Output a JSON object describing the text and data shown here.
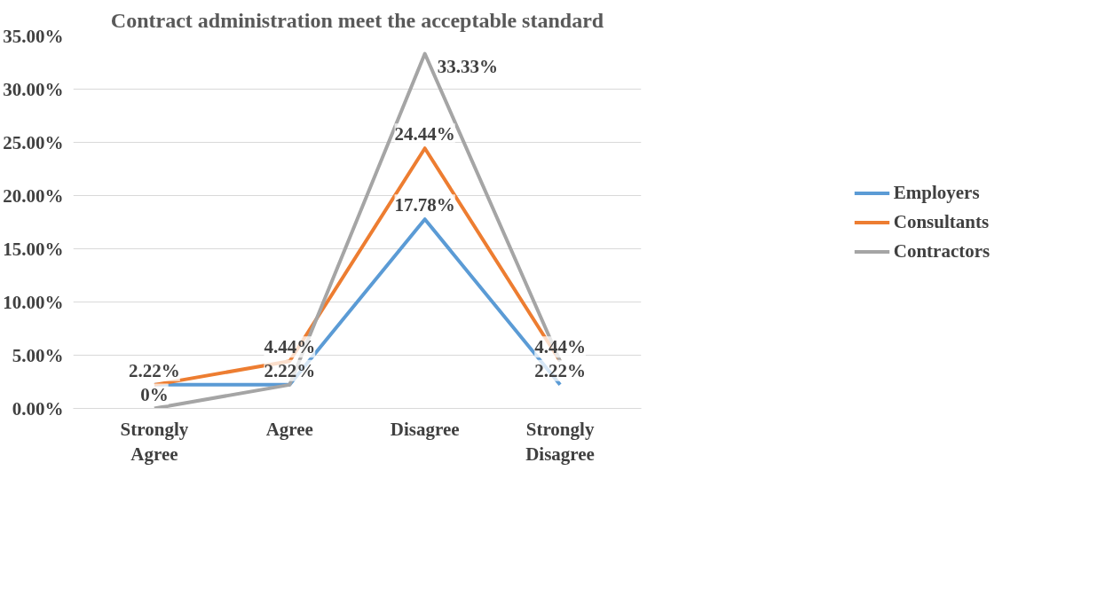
{
  "chart_data": {
    "type": "line",
    "title": "Contract administration meet the acceptable standard",
    "categories": [
      "Strongly\nAgree",
      "Agree",
      "Disagree",
      "Strongly\nDisagree"
    ],
    "series": [
      {
        "name": "Employers",
        "color": "#5b9bd5",
        "values": [
          2.22,
          2.22,
          17.78,
          2.22
        ],
        "value_labels": [
          "2.22%",
          "2.22%",
          "17.78%",
          "2.22%"
        ]
      },
      {
        "name": "Consultants",
        "color": "#ed7d31",
        "values": [
          2.22,
          4.44,
          24.44,
          4.44
        ],
        "value_labels": [
          null,
          "4.44%",
          "24.44%",
          "4.44%"
        ]
      },
      {
        "name": "Contractors",
        "color": "#a5a5a5",
        "values": [
          0,
          2.22,
          33.33,
          4.44
        ],
        "value_labels": [
          "0%",
          null,
          "33.33%",
          null
        ]
      }
    ],
    "ylim": [
      0,
      35
    ],
    "yticks": [
      {
        "value": 0,
        "label": "0.00%"
      },
      {
        "value": 5,
        "label": "5.00%"
      },
      {
        "value": 10,
        "label": "10.00%"
      },
      {
        "value": 15,
        "label": "15.00%"
      },
      {
        "value": 20,
        "label": "20.00%"
      },
      {
        "value": 25,
        "label": "25.00%"
      },
      {
        "value": 30,
        "label": "30.00%"
      },
      {
        "value": 35,
        "label": "35.00%"
      }
    ],
    "grid": "y",
    "legend": "right",
    "marker": "none",
    "line_style": "solid"
  }
}
